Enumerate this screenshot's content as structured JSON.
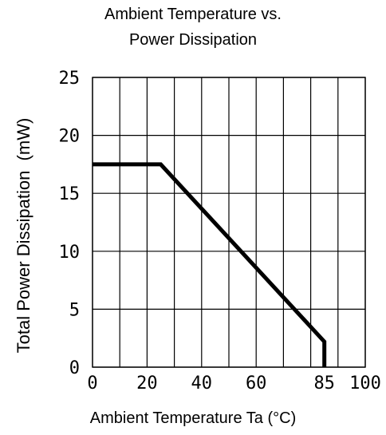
{
  "chart_data": {
    "type": "line",
    "title_lines": [
      "Ambient Temperature vs.",
      "Power Dissipation"
    ],
    "xlabel": "Ambient Temperature Ta (°C)",
    "ylabel": "Total Power Dissipation  (mW)",
    "xlim": [
      0,
      100
    ],
    "ylim": [
      0,
      25
    ],
    "x_ticks": [
      0,
      20,
      40,
      60,
      85,
      100
    ],
    "y_ticks": [
      0,
      5,
      10,
      15,
      20,
      25
    ],
    "x_gridlines": [
      0,
      10,
      20,
      30,
      40,
      50,
      60,
      70,
      80,
      90,
      100
    ],
    "y_gridlines": [
      0,
      5,
      10,
      15,
      20,
      25
    ],
    "grid": true,
    "series": [
      {
        "x": [
          0,
          25,
          85,
          85
        ],
        "y": [
          17.5,
          17.5,
          2.2,
          0
        ]
      }
    ],
    "colors": {
      "line": "#000000",
      "grid": "#000000",
      "background": "#ffffff"
    }
  }
}
